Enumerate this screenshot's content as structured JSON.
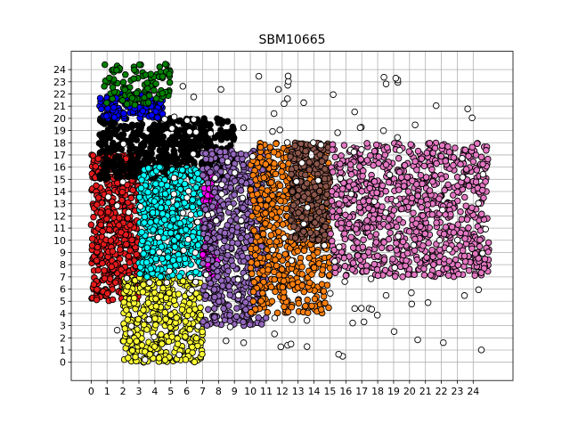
{
  "chart_data": {
    "type": "scatter",
    "title": "SBM10665",
    "xlabel": "",
    "ylabel": "",
    "xlim": [
      -1.25,
      26.5
    ],
    "ylim": [
      -1.5,
      25.5
    ],
    "x_ticks": [
      "0",
      "1",
      "2",
      "3",
      "4",
      "5",
      "6",
      "7",
      "8",
      "9",
      "10",
      "11",
      "12",
      "13",
      "14",
      "15",
      "16",
      "17",
      "18",
      "19",
      "20",
      "21",
      "22",
      "23",
      "24"
    ],
    "y_ticks": [
      "0",
      "1",
      "2",
      "3",
      "4",
      "5",
      "6",
      "7",
      "8",
      "9",
      "10",
      "11",
      "12",
      "13",
      "14",
      "15",
      "16",
      "17",
      "18",
      "19",
      "20",
      "21",
      "22",
      "23",
      "24"
    ],
    "grid": true,
    "legend": "none",
    "marker": "circle with black edge",
    "colors": {
      "red": "#e41a1c",
      "black": "#000000",
      "blue": "#0000ff",
      "green": "#008000",
      "yellow": "#ffff33",
      "cyan": "#00ffff",
      "magenta": "#ff00ff",
      "purple": "#9467bd",
      "orange": "#ff7f0e",
      "brown": "#8c564b",
      "pink": "#e377c2",
      "white": "#ffffff"
    },
    "clusters": [
      {
        "color": "red",
        "x_range": [
          0,
          3
        ],
        "y_range": [
          5,
          17
        ],
        "approx_count": 520
      },
      {
        "color": "black",
        "x_range": [
          0.5,
          9
        ],
        "y_range": [
          15,
          20
        ],
        "approx_count": 480
      },
      {
        "color": "blue",
        "x_range": [
          0.5,
          4.5
        ],
        "y_range": [
          20,
          22
        ],
        "approx_count": 150
      },
      {
        "color": "green",
        "x_range": [
          0.8,
          5
        ],
        "y_range": [
          21,
          24.5
        ],
        "approx_count": 110
      },
      {
        "color": "yellow",
        "x_range": [
          2,
          7
        ],
        "y_range": [
          0,
          7
        ],
        "approx_count": 420
      },
      {
        "color": "cyan",
        "x_range": [
          3,
          7
        ],
        "y_range": [
          7,
          16
        ],
        "approx_count": 600
      },
      {
        "color": "magenta",
        "x_range": [
          7,
          8
        ],
        "y_range": [
          7,
          16
        ],
        "approx_count": 140
      },
      {
        "color": "purple",
        "x_range": [
          7,
          11
        ],
        "y_range": [
          3,
          17.5
        ],
        "approx_count": 560
      },
      {
        "color": "orange",
        "x_range": [
          10,
          15
        ],
        "y_range": [
          4,
          18
        ],
        "approx_count": 620
      },
      {
        "color": "brown",
        "x_range": [
          12.5,
          15
        ],
        "y_range": [
          10,
          18
        ],
        "approx_count": 300
      },
      {
        "color": "pink",
        "x_range": [
          15,
          25
        ],
        "y_range": [
          7,
          18
        ],
        "approx_count": 900
      },
      {
        "color": "white",
        "x_range": [
          1,
          25
        ],
        "y_range": [
          0,
          23.5
        ],
        "approx_count": 160
      }
    ]
  }
}
